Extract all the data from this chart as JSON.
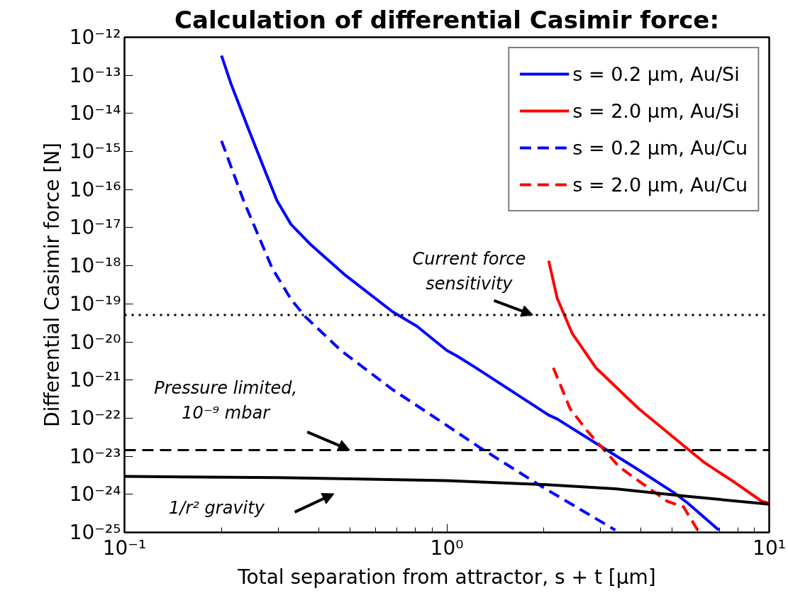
{
  "chart_data": {
    "type": "line",
    "title": "Calculation of differential Casimir force:",
    "xlabel": "Total separation from attractor, s + t [μm]",
    "ylabel": "Differential Casimir force [N]",
    "log": "xy",
    "xlim": [
      0.1,
      10
    ],
    "ylim": [
      1e-25,
      1e-12
    ],
    "xticks": [
      {
        "value": 0.1,
        "label": "10⁻¹"
      },
      {
        "value": 1,
        "label": "10⁰"
      },
      {
        "value": 10,
        "label": "10¹"
      }
    ],
    "yticks": [
      {
        "value": 1e-12,
        "label": "10⁻¹²"
      },
      {
        "value": 1e-13,
        "label": "10⁻¹³"
      },
      {
        "value": 1e-14,
        "label": "10⁻¹⁴"
      },
      {
        "value": 1e-15,
        "label": "10⁻¹⁵"
      },
      {
        "value": 1e-16,
        "label": "10⁻¹⁶"
      },
      {
        "value": 1e-17,
        "label": "10⁻¹⁷"
      },
      {
        "value": 1e-18,
        "label": "10⁻¹⁸"
      },
      {
        "value": 1e-19,
        "label": "10⁻¹⁹"
      },
      {
        "value": 1e-20,
        "label": "10⁻²⁰"
      },
      {
        "value": 1e-21,
        "label": "10⁻²¹"
      },
      {
        "value": 1e-22,
        "label": "10⁻²²"
      },
      {
        "value": 1e-23,
        "label": "10⁻²³"
      },
      {
        "value": 1e-24,
        "label": "10⁻²⁴"
      },
      {
        "value": 1e-25,
        "label": "10⁻²⁵"
      }
    ],
    "grid": false,
    "legend": "top right",
    "marker": "none",
    "series": [
      {
        "name": "s = 0.2 μm, Au/Si",
        "color": "#0000ff",
        "line_style": "solid",
        "x": [
          0.2,
          0.214,
          0.243,
          0.269,
          0.297,
          0.329,
          0.377,
          0.485,
          0.679,
          0.807,
          1.0,
          1.07,
          1.23,
          2.07,
          2.2,
          2.9,
          3.93,
          5.07,
          5.6,
          6.98
        ],
        "values": [
          3.3e-13,
          6e-14,
          3.7e-15,
          4.2e-16,
          5.2e-17,
          1.2e-17,
          3.7e-18,
          5.6e-19,
          6.2e-20,
          2.6e-20,
          6e-21,
          4.4e-21,
          2.1e-21,
          1.2e-22,
          9.5e-23,
          2.2e-23,
          4.4e-24,
          1.1e-24,
          5.8e-25,
          1.15e-25
        ]
      },
      {
        "name": "s = 2.0 μm, Au/Si",
        "color": "#ff0000",
        "line_style": "solid",
        "x": [
          2.07,
          2.2,
          2.45,
          2.9,
          3.93,
          5.53,
          6.3,
          7.72,
          9.47,
          10
        ],
        "values": [
          1.35e-18,
          1.4e-19,
          1.66e-20,
          2.1e-21,
          1.8e-22,
          1.66e-23,
          6.8e-24,
          2.2e-24,
          6.6e-25,
          5.8e-25
        ]
      },
      {
        "name": "s = 0.2 μm, Au/Cu",
        "color": "#0000ff",
        "line_style": "dashed",
        "x": [
          0.2,
          0.234,
          0.287,
          0.329,
          0.364,
          0.469,
          0.679,
          0.86,
          0.99,
          1.27,
          1.97,
          3.33
        ],
        "values": [
          1.9e-15,
          5.2e-17,
          8.7e-19,
          1.3e-19,
          4.6e-20,
          6e-21,
          5.6e-22,
          1.5e-22,
          6.8e-23,
          1.66e-23,
          1.6e-24,
          1.15e-25
        ]
      },
      {
        "name": "s = 2.0 μm, Au/Cu",
        "color": "#ff0000",
        "line_style": "dashed",
        "x": [
          2.14,
          2.41,
          2.72,
          3.43,
          4.82,
          5.42,
          6.0
        ],
        "values": [
          2.1e-21,
          1.8e-22,
          4.7e-23,
          5.2e-24,
          6.6e-25,
          4.7e-25,
          1.15e-25
        ]
      },
      {
        "color": "#000000",
        "line_style": "solid",
        "x": [
          0.1,
          0.3,
          1.0,
          2.0,
          3.33,
          5.53,
          10
        ],
        "values": [
          2.95e-24,
          2.75e-24,
          2.3e-24,
          1.8e-24,
          1.4e-24,
          8.9e-25,
          5.5e-25
        ]
      }
    ],
    "ref_lines": [
      {
        "axis": "y",
        "value": 5.1e-20,
        "color": "#000000",
        "line_style": "dotted"
      },
      {
        "axis": "y",
        "value": 1.45e-23,
        "color": "#000000",
        "line_style": "dashed"
      }
    ],
    "annotations": [
      {
        "text": "Current force\nsensitivity",
        "x": 1.85,
        "y": 5.1e-20
      },
      {
        "text": "Pressure limited,\n10⁻⁹ mbar",
        "x": 0.5,
        "y": 1.45e-23
      },
      "1/r² gravity"
    ]
  }
}
